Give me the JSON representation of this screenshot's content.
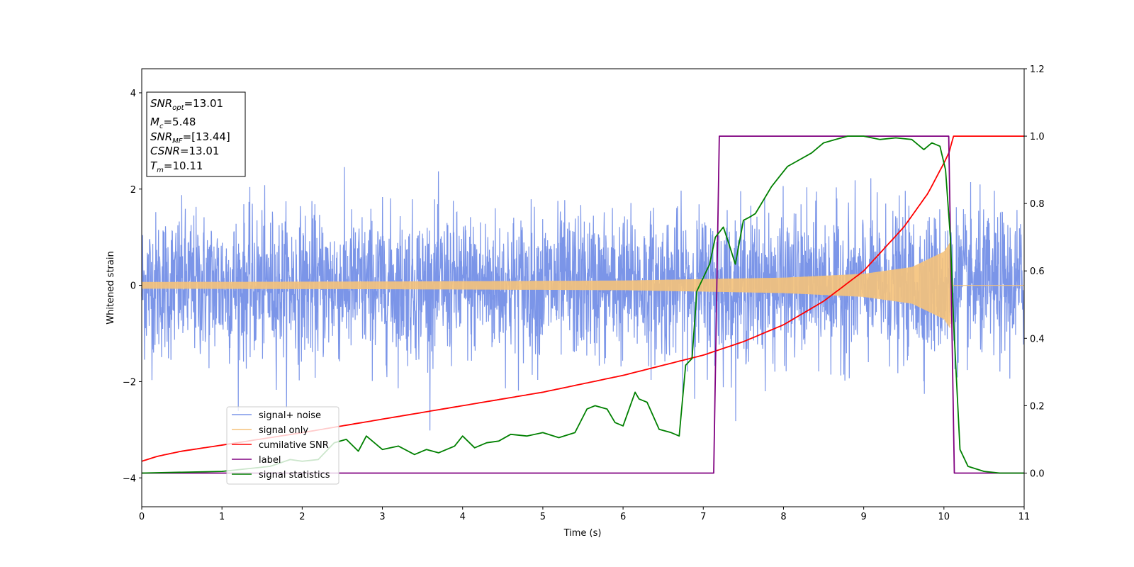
{
  "chart_data": {
    "type": "line",
    "xlabel": "Time (s)",
    "ylabel": "Whitened strain",
    "xlim": [
      0,
      11
    ],
    "ylim": [
      -4.6,
      4.5
    ],
    "y2lim": [
      -0.1,
      1.2
    ],
    "xticks": [
      "0",
      "1",
      "2",
      "3",
      "4",
      "5",
      "6",
      "7",
      "8",
      "9",
      "10",
      "11"
    ],
    "yticks": [
      "−4",
      "−2",
      "0",
      "2",
      "4"
    ],
    "y2ticks": [
      "0.0",
      "0.2",
      "0.4",
      "0.6",
      "0.8",
      "1.0",
      "1.2"
    ],
    "grid": false,
    "legend_position": "lower-left",
    "legend": [
      "signal+ noise",
      "signal only",
      "cumilative SNR",
      "label",
      "signal statistics"
    ],
    "annotations": {
      "snr_opt": {
        "symbol": "SNR",
        "sub": "opt",
        "value": "=13.01"
      },
      "mc": {
        "symbol": "M",
        "sub": "c",
        "value": "=5.48"
      },
      "snr_mf": {
        "symbol": "SNR",
        "sub": "MF",
        "value": "=[13.44]"
      },
      "csnr": {
        "symbol": "CSNR",
        "sub": "",
        "value": "=13.01"
      },
      "tm": {
        "symbol": "T",
        "sub": "m",
        "value": "=10.11"
      }
    },
    "series": [
      {
        "name": "signal+ noise",
        "axis": "left",
        "color": "#7b95e8",
        "description_values": {
          "std": 0.75,
          "t_start": 0,
          "t_end": 11
        }
      },
      {
        "name": "signal only",
        "axis": "left",
        "color": "#f5c27a",
        "envelope": {
          "t": [
            0,
            3,
            6,
            8,
            9,
            9.6,
            10.0,
            10.08,
            10.11,
            11
          ],
          "amp": [
            0.07,
            0.08,
            0.1,
            0.16,
            0.24,
            0.38,
            0.7,
            0.9,
            0.0,
            0.0
          ]
        }
      },
      {
        "name": "cumilative SNR",
        "axis": "right",
        "color": "#ff0000",
        "t": [
          0,
          0.2,
          0.5,
          1,
          2,
          3,
          4,
          5,
          6,
          7,
          7.5,
          8,
          8.5,
          9,
          9.5,
          9.8,
          10.0,
          10.08,
          10.11,
          11
        ],
        "values": [
          0.035,
          0.05,
          0.065,
          0.083,
          0.12,
          0.16,
          0.2,
          0.24,
          0.29,
          0.35,
          0.39,
          0.44,
          0.51,
          0.6,
          0.73,
          0.83,
          0.92,
          0.96,
          1.0,
          1.0
        ]
      },
      {
        "name": "label",
        "axis": "right",
        "color": "#800080",
        "t": [
          0,
          7.13,
          7.2,
          10.06,
          10.13,
          11
        ],
        "values": [
          0,
          0,
          1,
          1,
          0,
          0
        ]
      },
      {
        "name": "signal statistics",
        "axis": "right",
        "color": "#008000",
        "t": [
          0,
          1.0,
          1.6,
          1.85,
          2.0,
          2.2,
          2.4,
          2.55,
          2.7,
          2.8,
          3.0,
          3.2,
          3.4,
          3.55,
          3.7,
          3.9,
          4.0,
          4.15,
          4.3,
          4.45,
          4.6,
          4.8,
          5.0,
          5.2,
          5.4,
          5.55,
          5.65,
          5.8,
          5.9,
          6.0,
          6.15,
          6.2,
          6.3,
          6.45,
          6.6,
          6.7,
          6.78,
          6.86,
          6.92,
          7.0,
          7.08,
          7.15,
          7.25,
          7.32,
          7.4,
          7.5,
          7.58,
          7.65,
          7.75,
          7.85,
          7.95,
          8.05,
          8.2,
          8.35,
          8.5,
          8.65,
          8.8,
          9.0,
          9.2,
          9.4,
          9.6,
          9.75,
          9.85,
          9.95,
          10.02,
          10.08,
          10.12,
          10.2,
          10.3,
          10.5,
          10.7,
          11
        ],
        "values": [
          0.0,
          0.005,
          0.02,
          0.04,
          0.035,
          0.04,
          0.09,
          0.1,
          0.065,
          0.11,
          0.07,
          0.08,
          0.055,
          0.07,
          0.06,
          0.08,
          0.11,
          0.075,
          0.09,
          0.095,
          0.115,
          0.11,
          0.12,
          0.105,
          0.12,
          0.19,
          0.2,
          0.19,
          0.15,
          0.14,
          0.24,
          0.22,
          0.21,
          0.13,
          0.12,
          0.11,
          0.32,
          0.34,
          0.54,
          0.58,
          0.62,
          0.7,
          0.73,
          0.68,
          0.62,
          0.75,
          0.76,
          0.77,
          0.81,
          0.85,
          0.88,
          0.91,
          0.93,
          0.95,
          0.98,
          0.99,
          1.0,
          1.0,
          0.99,
          0.995,
          0.99,
          0.96,
          0.98,
          0.97,
          0.9,
          0.7,
          0.45,
          0.07,
          0.02,
          0.005,
          0.0,
          0.0
        ]
      }
    ]
  }
}
